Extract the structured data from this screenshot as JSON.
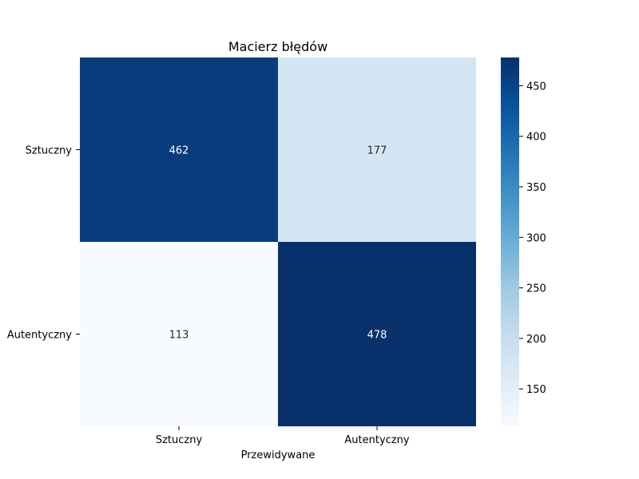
{
  "chart_data": {
    "type": "heatmap",
    "title": "Macierz błędów",
    "xlabel": "Przewidywane",
    "ylabel": "",
    "x_categories": [
      "Sztuczny",
      "Autentyczny"
    ],
    "y_categories": [
      "Sztuczny",
      "Autentyczny"
    ],
    "values": [
      [
        462,
        177
      ],
      [
        113,
        478
      ]
    ],
    "colormap": "Blues",
    "colorbar": {
      "range": [
        113,
        478
      ],
      "ticks": [
        150,
        200,
        250,
        300,
        350,
        400,
        450
      ],
      "tick_labels": [
        "150",
        "200",
        "250",
        "300",
        "350",
        "400",
        "450"
      ]
    },
    "annotation_colors": {
      "dark_cell": "#ffffff",
      "light_cell": "#262626"
    }
  }
}
